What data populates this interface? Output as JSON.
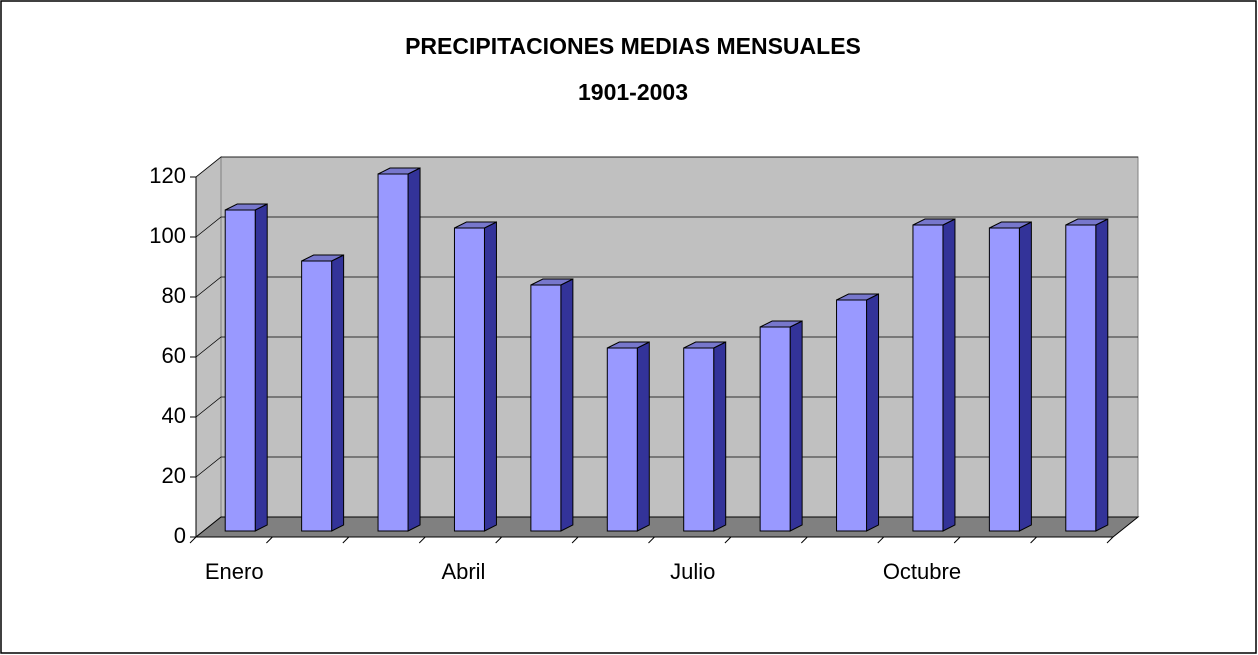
{
  "chart_data": {
    "type": "bar3d",
    "title_lines": [
      "PRECIPITACIONES MEDIAS MENSUALES",
      "1901-2003"
    ],
    "categories": [
      "Enero",
      null,
      null,
      "Abril",
      null,
      null,
      "Julio",
      null,
      null,
      "Octubre",
      null,
      null
    ],
    "values": [
      107,
      90,
      119,
      101,
      82,
      61,
      61,
      68,
      77,
      102,
      101,
      102
    ],
    "color": "#9999ff",
    "ylim": [
      0,
      120
    ],
    "yticks": [
      0,
      20,
      40,
      60,
      80,
      100,
      120
    ],
    "grid": true
  }
}
